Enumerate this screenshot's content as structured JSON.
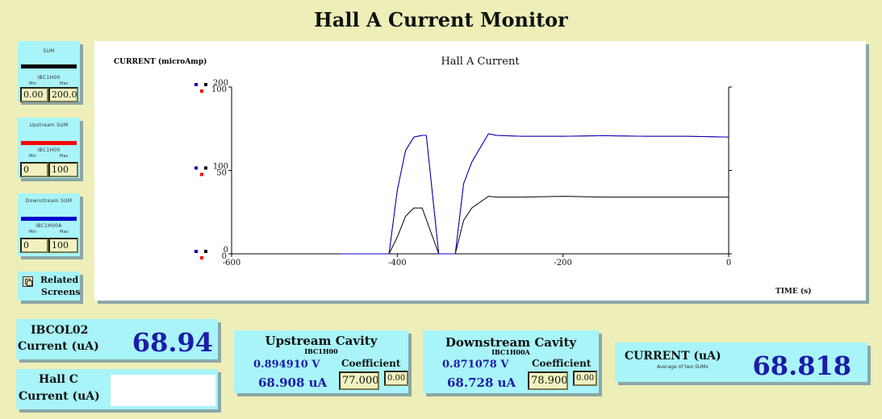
{
  "title": "Hall A Current Monitor",
  "controls": [
    {
      "label": "SUM",
      "color": "#000000",
      "pv": "IBC1H00",
      "min_label": "Min",
      "max_label": "Max",
      "min": "0.00",
      "max": "200.0"
    },
    {
      "label": "Upstream SUM",
      "color": "#ff0000",
      "pv": "IBC1H00",
      "min_label": "Min",
      "max_label": "Max",
      "min": "0",
      "max": "100"
    },
    {
      "label": "Downstream SUM",
      "color": "#0000cc",
      "pv": "IBC1H00A",
      "min_label": "Min",
      "max_label": "Max",
      "min": "0",
      "max": "100"
    }
  ],
  "related": {
    "label_line1": "Related",
    "label_line2": "Screens"
  },
  "chart_data": {
    "type": "line",
    "title": "Hall A Current",
    "ylabel": "CURRENT (microAmp)",
    "xlabel": "TIME (s)",
    "xlim": [
      -600,
      0
    ],
    "x_ticks": [
      "-600",
      "-400",
      "-200",
      "0"
    ],
    "y_ticks_black": [
      "0",
      "100",
      "200"
    ],
    "y_ticks_red": [
      "0",
      "50",
      "100"
    ],
    "grid": false,
    "series": [
      {
        "color": "#000000",
        "ylim": [
          0,
          200
        ],
        "x": [
          -470,
          -410,
          -400,
          -390,
          -380,
          -370,
          -350,
          -330,
          -320,
          -310,
          -290,
          -280,
          -250,
          -200,
          -150,
          -100,
          -50,
          0
        ],
        "y": [
          0,
          0,
          20,
          45,
          55,
          55,
          0,
          0,
          40,
          55,
          69,
          68,
          68,
          69,
          68,
          68,
          68,
          68
        ]
      },
      {
        "color": "#ff0000",
        "ylim": [
          0,
          100
        ],
        "x": [
          -470,
          -410,
          -400,
          -390,
          -380,
          -370,
          -365,
          -350,
          -330,
          -320,
          -310,
          -290,
          -280,
          -250,
          -200,
          -150,
          -100,
          -50,
          0
        ],
        "y": [
          0,
          0,
          38,
          62,
          70,
          71,
          71,
          0,
          0,
          42,
          55,
          72,
          71,
          70.5,
          70.5,
          70.8,
          70.5,
          70.5,
          70
        ]
      },
      {
        "color": "#0000cc",
        "ylim": [
          0,
          100
        ],
        "x": [
          -470,
          -410,
          -400,
          -390,
          -380,
          -370,
          -365,
          -350,
          -330,
          -320,
          -310,
          -290,
          -280,
          -250,
          -200,
          -150,
          -100,
          -50,
          0
        ],
        "y": [
          0,
          0,
          38,
          62,
          70,
          71,
          71,
          0,
          0,
          42,
          55,
          72,
          71,
          70.5,
          70.5,
          70.8,
          70.5,
          70.5,
          70
        ]
      }
    ]
  },
  "ibc": {
    "line1": "IBCOL02",
    "line2": "Current (uA)",
    "value": "68.94"
  },
  "hallc": {
    "line1": "Hall C",
    "line2": "Current (uA)",
    "value": ""
  },
  "upstream": {
    "title": "Upstream Cavity",
    "pv": "IBC1H00",
    "voltage": "0.894910 V",
    "current": "68.908 uA",
    "coef_label": "Coefficient",
    "coef": "77.000",
    "offset": "0.00"
  },
  "downstream": {
    "title": "Downstream Cavity",
    "pv": "IBC1H00A",
    "voltage": "0.871078 V",
    "current": "68.728 uA",
    "coef_label": "Coefficient",
    "coef": "78.900",
    "offset": "0.00"
  },
  "current": {
    "label": "CURRENT (uA)",
    "sublabel": "Average of two SUMs",
    "value": "68.818"
  }
}
